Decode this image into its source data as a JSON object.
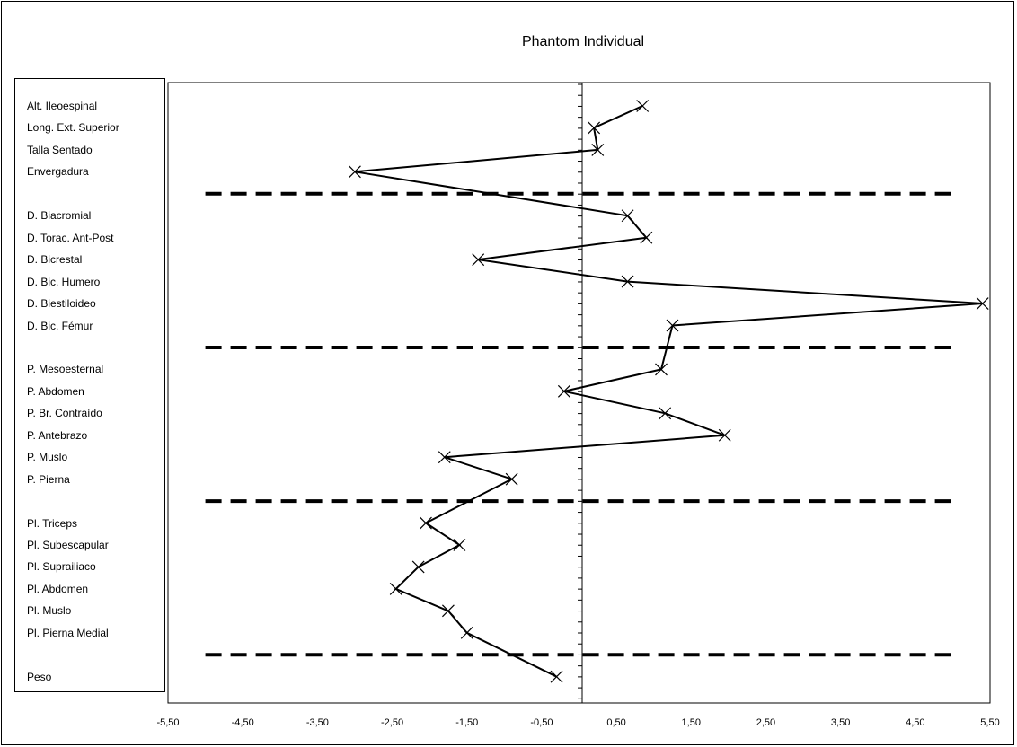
{
  "chart_data": {
    "type": "line",
    "title": "Phantom Individual",
    "xlim": [
      -5.5,
      5.5
    ],
    "xticks": [
      "-5,50",
      "-4,50",
      "-3,50",
      "-2,50",
      "-1,50",
      "-0,50",
      "0,50",
      "1,50",
      "2,50",
      "3,50",
      "4,50",
      "5,50"
    ],
    "categories": [
      "Alt. Ileoespinal",
      "Long. Ext. Superior",
      "Talla Sentado",
      "Envergadura",
      "",
      "D. Biacromial",
      "D. Torac. Ant-Post",
      "D. Bicrestal",
      "D. Bic. Humero",
      "D. Biestiloideo",
      "D. Bic. Fémur",
      "",
      "P. Mesoesternal",
      "P. Abdomen",
      "P. Br. Contraído",
      "P. Antebrazo",
      "P. Muslo",
      "P. Pierna",
      "",
      "Pl. Triceps",
      "Pl. Subescapular",
      "Pl. Suprailiaco",
      "Pl. Abdomen",
      "Pl. Muslo",
      "Pl. Pierna Medial",
      "",
      "Peso"
    ],
    "series": [
      {
        "values": [
          0.85,
          0.2,
          0.25,
          -3.0,
          null,
          0.65,
          0.9,
          -1.35,
          0.65,
          5.4,
          1.25,
          null,
          1.1,
          -0.2,
          1.15,
          1.95,
          -1.8,
          -0.9,
          null,
          -2.05,
          -1.6,
          -2.15,
          -2.45,
          -1.75,
          -1.5,
          null,
          -0.3
        ],
        "marker": "x",
        "color": "#000000"
      }
    ],
    "separators": [
      4,
      11,
      18,
      25
    ],
    "separator_range": [
      -5.0,
      5.0
    ],
    "grid": false,
    "legend": "none"
  }
}
